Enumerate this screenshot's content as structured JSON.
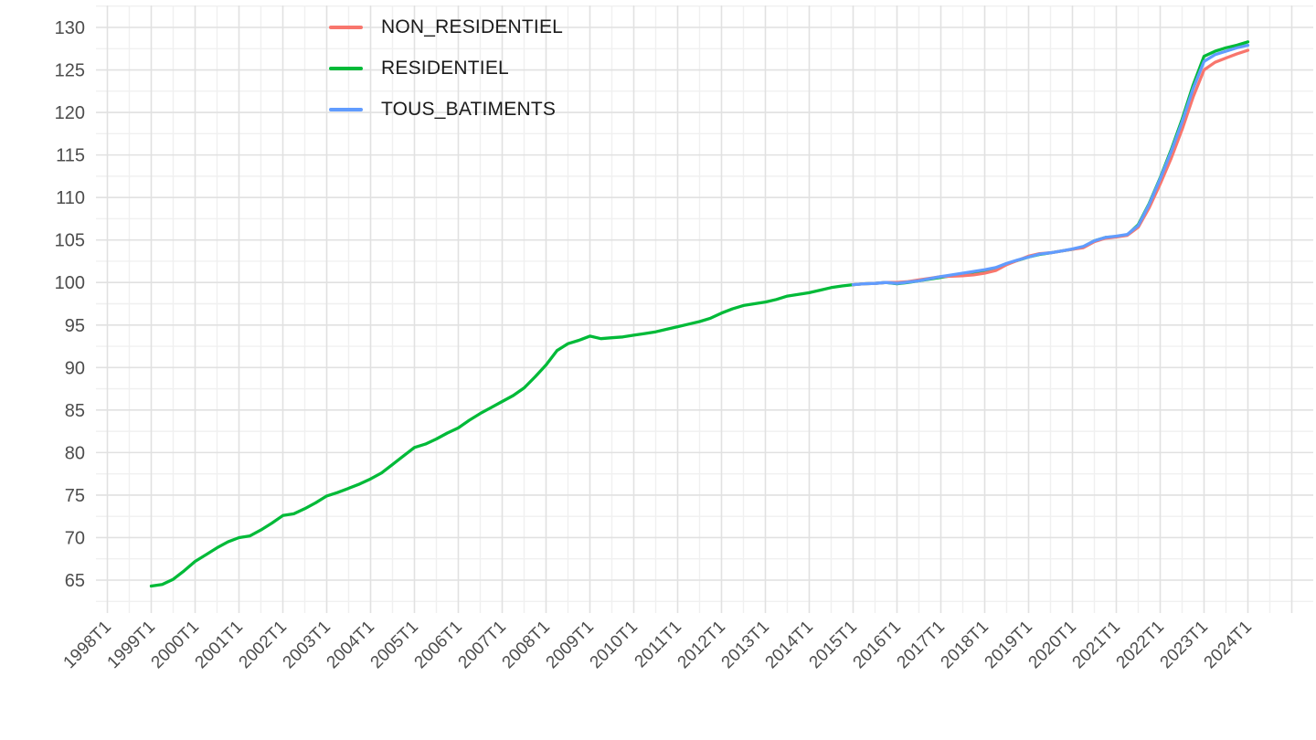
{
  "chart_data": {
    "type": "line",
    "title": "",
    "xlabel": "",
    "ylabel": "",
    "x_unit": "year-quarter",
    "ylim": [
      62.5,
      132.5
    ],
    "y_ticks": [
      65,
      70,
      75,
      80,
      85,
      90,
      95,
      100,
      105,
      110,
      115,
      120,
      125,
      130
    ],
    "x_tick_labels": [
      "1998T1",
      "1999T1",
      "2000T1",
      "2001T1",
      "2002T1",
      "2003T1",
      "2004T1",
      "2005T1",
      "2006T1",
      "2007T1",
      "2008T1",
      "2009T1",
      "2010T1",
      "2011T1",
      "2012T1",
      "2013T1",
      "2014T1",
      "2015T1",
      "2016T1",
      "2017T1",
      "2018T1",
      "2019T1",
      "2020T1",
      "2021T1",
      "2022T1",
      "2023T1",
      "2024T1"
    ],
    "grid": "major+minor",
    "legend_position": "top-left-inside",
    "series": [
      {
        "name": "RESIDENTIEL",
        "color": "#00BA38",
        "start": "1999T1",
        "values": [
          64.3,
          64.5,
          65.1,
          66.1,
          67.2,
          68.0,
          68.8,
          69.5,
          70.0,
          70.2,
          70.9,
          71.7,
          72.6,
          72.8,
          73.4,
          74.1,
          74.9,
          75.3,
          75.8,
          76.3,
          76.9,
          77.6,
          78.6,
          79.6,
          80.6,
          81.0,
          81.6,
          82.3,
          82.9,
          83.8,
          84.6,
          85.3,
          86.0,
          86.7,
          87.6,
          88.9,
          90.3,
          92.0,
          92.8,
          93.2,
          93.7,
          93.4,
          93.5,
          93.6,
          93.8,
          94.0,
          94.2,
          94.5,
          94.8,
          95.1,
          95.4,
          95.8,
          96.4,
          96.9,
          97.3,
          97.5,
          97.7,
          98.0,
          98.4,
          98.6,
          98.8,
          99.1,
          99.4,
          99.6,
          99.75,
          99.85,
          99.9,
          100.0,
          99.85,
          100.0,
          100.2,
          100.4,
          100.6,
          100.8,
          101.0,
          101.2,
          101.4,
          101.7,
          102.2,
          102.6,
          103.0,
          103.3,
          103.5,
          103.7,
          103.9,
          104.2,
          104.9,
          105.3,
          105.4,
          105.6,
          106.8,
          109.3,
          112.3,
          115.6,
          119.2,
          123.2,
          126.6,
          127.2,
          127.6,
          127.9,
          128.3
        ]
      },
      {
        "name": "NON_RESIDENTIEL",
        "color": "#F8766D",
        "start": "2015T1",
        "values": [
          99.75,
          99.85,
          99.9,
          100.0,
          100.0,
          100.1,
          100.3,
          100.5,
          100.7,
          100.75,
          100.8,
          100.9,
          101.1,
          101.4,
          102.1,
          102.6,
          103.1,
          103.4,
          103.5,
          103.7,
          103.9,
          104.1,
          104.8,
          105.2,
          105.35,
          105.55,
          106.5,
          108.8,
          111.6,
          114.6,
          118.0,
          121.8,
          125.0,
          125.9,
          126.4,
          126.9,
          127.3
        ]
      },
      {
        "name": "TOUS_BATIMENTS",
        "color": "#619CFF",
        "start": "2015T1",
        "values": [
          99.75,
          99.85,
          99.9,
          100.0,
          99.9,
          100.05,
          100.2,
          100.45,
          100.7,
          100.9,
          101.1,
          101.3,
          101.5,
          101.75,
          102.25,
          102.65,
          103.0,
          103.35,
          103.5,
          103.7,
          103.95,
          104.25,
          104.9,
          105.3,
          105.45,
          105.65,
          106.7,
          109.2,
          112.2,
          115.4,
          118.9,
          122.8,
          126.0,
          126.8,
          127.2,
          127.6,
          127.9
        ]
      }
    ]
  },
  "legend": {
    "items": [
      {
        "label": "NON_RESIDENTIEL",
        "color": "#F8766D"
      },
      {
        "label": "RESIDENTIEL",
        "color": "#00BA38"
      },
      {
        "label": "TOUS_BATIMENTS",
        "color": "#619CFF"
      }
    ]
  },
  "style": {
    "axis_text_color": "#4d4d4d",
    "grid_major_color": "#e1e1e1",
    "grid_minor_color": "#f0f0f0",
    "background_color": "#ffffff"
  }
}
